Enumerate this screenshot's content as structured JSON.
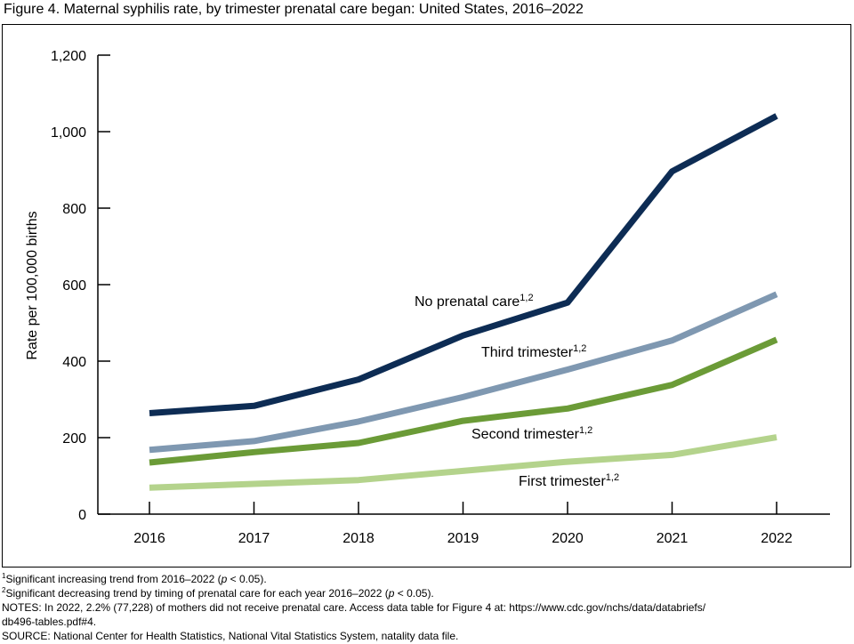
{
  "figure": {
    "title": "Figure 4. Maternal syphilis rate, by trimester prenatal care began: United States, 2016–2022"
  },
  "chart_data": {
    "type": "line",
    "title": "Figure 4. Maternal syphilis rate, by trimester prenatal care began: United States, 2016–2022",
    "xlabel": "",
    "ylabel": "Rate per 100,000 births",
    "x": [
      "2016",
      "2017",
      "2018",
      "2019",
      "2020",
      "2021",
      "2022"
    ],
    "ylim": [
      0,
      1200
    ],
    "yticks": [
      0,
      200,
      400,
      600,
      800,
      1000,
      1200
    ],
    "ytick_labels": [
      "0",
      "200",
      "400",
      "600",
      "800",
      "1,000",
      "1,200"
    ],
    "grid": false,
    "legend": "inline labels",
    "series": [
      {
        "name": "No prenatal care",
        "sup": "1,2",
        "color": "#0d2c54",
        "values": [
          264,
          283,
          352,
          467,
          553,
          896,
          1041
        ]
      },
      {
        "name": "Third trimester",
        "sup": "1,2",
        "color": "#7f98b1",
        "values": [
          168,
          191,
          242,
          306,
          378,
          454,
          575
        ]
      },
      {
        "name": "Second trimester",
        "sup": "1,2",
        "color": "#6b9b37",
        "values": [
          135,
          162,
          186,
          244,
          276,
          338,
          456
        ]
      },
      {
        "name": "First trimester",
        "sup": "1,2",
        "color": "#b4d38c",
        "values": [
          69,
          79,
          89,
          113,
          137,
          155,
          201
        ]
      }
    ]
  },
  "footnotes": {
    "note1": {
      "sup": "1",
      "pre": "Significant increasing trend from 2016–2022 (",
      "italic": "p",
      "post": " < 0.05)."
    },
    "note2": {
      "sup": "2",
      "pre": "Significant decreasing trend by timing of prenatal care for each year 2016–2022 (",
      "italic": "p",
      "post": " < 0.05)."
    },
    "notes_line1": "NOTES: In 2022, 2.2% (77,228) of mothers did not receive prenatal care. Access data table for Figure 4 at: https://www.cdc.gov/nchs/data/databriefs/",
    "notes_line2": "db496-tables.pdf#4.",
    "source": "SOURCE: National Center for Health Statistics, National Vital Statistics System, natality data file."
  }
}
